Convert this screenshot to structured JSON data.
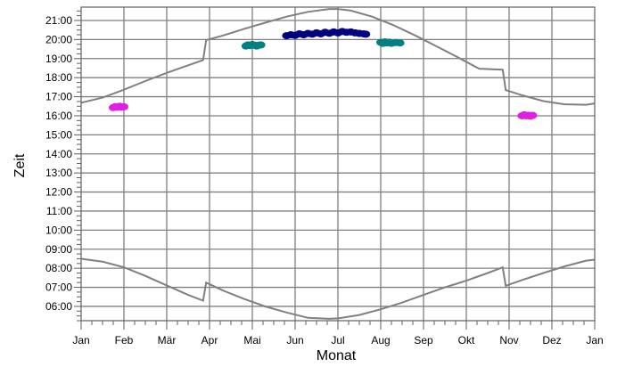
{
  "chart_data": {
    "type": "scatter",
    "xlabel": "Monat",
    "ylabel": "Zeit",
    "x_tick_labels": [
      "Jan",
      "Feb",
      "Mär",
      "Apr",
      "Mai",
      "Jun",
      "Jul",
      "Aug",
      "Sep",
      "Okt",
      "Nov",
      "Dez",
      "Jan"
    ],
    "y_tick_labels": [
      "06:00",
      "07:00",
      "08:00",
      "09:00",
      "10:00",
      "11:00",
      "12:00",
      "13:00",
      "14:00",
      "15:00",
      "16:00",
      "17:00",
      "18:00",
      "19:00",
      "20:00",
      "21:00"
    ],
    "xlim": [
      1,
      13
    ],
    "ylim": [
      5.25,
      21.7
    ],
    "grid": true,
    "colors": {
      "curve": "#808080",
      "grid": "#808080",
      "magenta": "#e020e0",
      "teal": "#008080",
      "navy": "#000080"
    },
    "sunset_curve": {
      "x": [
        1.0,
        1.5,
        2.0,
        2.5,
        3.0,
        3.5,
        3.85,
        3.92,
        4.3,
        4.8,
        5.3,
        5.8,
        6.3,
        6.8,
        7.0,
        7.3,
        7.8,
        8.3,
        8.8,
        9.3,
        9.8,
        10.3,
        10.85,
        10.92,
        11.3,
        11.8,
        12.3,
        12.8,
        13.0
      ],
      "y": [
        16.68,
        16.95,
        17.37,
        17.82,
        18.25,
        18.65,
        18.92,
        19.97,
        20.2,
        20.55,
        20.88,
        21.2,
        21.45,
        21.6,
        21.6,
        21.52,
        21.2,
        20.75,
        20.22,
        19.65,
        19.07,
        18.47,
        18.42,
        17.35,
        17.08,
        16.77,
        16.6,
        16.58,
        16.65
      ]
    },
    "sunrise_curve": {
      "x": [
        1.0,
        1.5,
        2.0,
        2.5,
        3.0,
        3.5,
        3.85,
        3.92,
        4.3,
        4.8,
        5.3,
        5.8,
        6.3,
        6.8,
        7.0,
        7.5,
        8.0,
        8.5,
        9.0,
        9.5,
        10.0,
        10.5,
        10.85,
        10.92,
        11.3,
        11.8,
        12.3,
        12.8,
        13.0
      ],
      "y": [
        8.5,
        8.35,
        8.05,
        7.6,
        7.1,
        6.6,
        6.3,
        7.25,
        6.85,
        6.4,
        6.0,
        5.68,
        5.4,
        5.35,
        5.37,
        5.55,
        5.85,
        6.2,
        6.6,
        7.0,
        7.35,
        7.75,
        8.05,
        7.08,
        7.38,
        7.75,
        8.1,
        8.4,
        8.45
      ]
    },
    "series": [
      {
        "color": "magenta",
        "points": [
          [
            1.75,
            16.43
          ],
          [
            1.8,
            16.48
          ],
          [
            1.85,
            16.45
          ],
          [
            1.9,
            16.5
          ],
          [
            1.95,
            16.45
          ],
          [
            2.0,
            16.47
          ]
        ]
      },
      {
        "color": "teal",
        "points": [
          [
            4.85,
            19.66
          ],
          [
            4.9,
            19.72
          ],
          [
            4.95,
            19.68
          ],
          [
            5.0,
            19.74
          ],
          [
            5.05,
            19.7
          ],
          [
            5.1,
            19.66
          ],
          [
            5.15,
            19.7
          ],
          [
            5.2,
            19.72
          ]
        ]
      },
      {
        "color": "navy",
        "points": [
          [
            5.8,
            20.2
          ],
          [
            5.9,
            20.25
          ],
          [
            6.0,
            20.22
          ],
          [
            6.1,
            20.3
          ],
          [
            6.2,
            20.25
          ],
          [
            6.3,
            20.32
          ],
          [
            6.4,
            20.28
          ],
          [
            6.5,
            20.35
          ],
          [
            6.6,
            20.3
          ],
          [
            6.7,
            20.38
          ],
          [
            6.8,
            20.33
          ],
          [
            6.9,
            20.4
          ],
          [
            7.0,
            20.35
          ],
          [
            7.1,
            20.42
          ],
          [
            7.2,
            20.38
          ],
          [
            7.3,
            20.4
          ],
          [
            7.4,
            20.35
          ],
          [
            7.5,
            20.32
          ],
          [
            7.6,
            20.3
          ],
          [
            7.65,
            20.28
          ]
        ]
      },
      {
        "color": "teal",
        "points": [
          [
            8.0,
            19.85
          ],
          [
            8.05,
            19.8
          ],
          [
            8.1,
            19.88
          ],
          [
            8.15,
            19.82
          ],
          [
            8.2,
            19.86
          ],
          [
            8.25,
            19.8
          ],
          [
            8.35,
            19.84
          ],
          [
            8.45,
            19.82
          ]
        ]
      },
      {
        "color": "magenta",
        "points": [
          [
            11.3,
            16.0
          ],
          [
            11.35,
            16.05
          ],
          [
            11.4,
            16.0
          ],
          [
            11.45,
            16.03
          ],
          [
            11.5,
            15.98
          ],
          [
            11.55,
            16.02
          ]
        ]
      }
    ]
  }
}
